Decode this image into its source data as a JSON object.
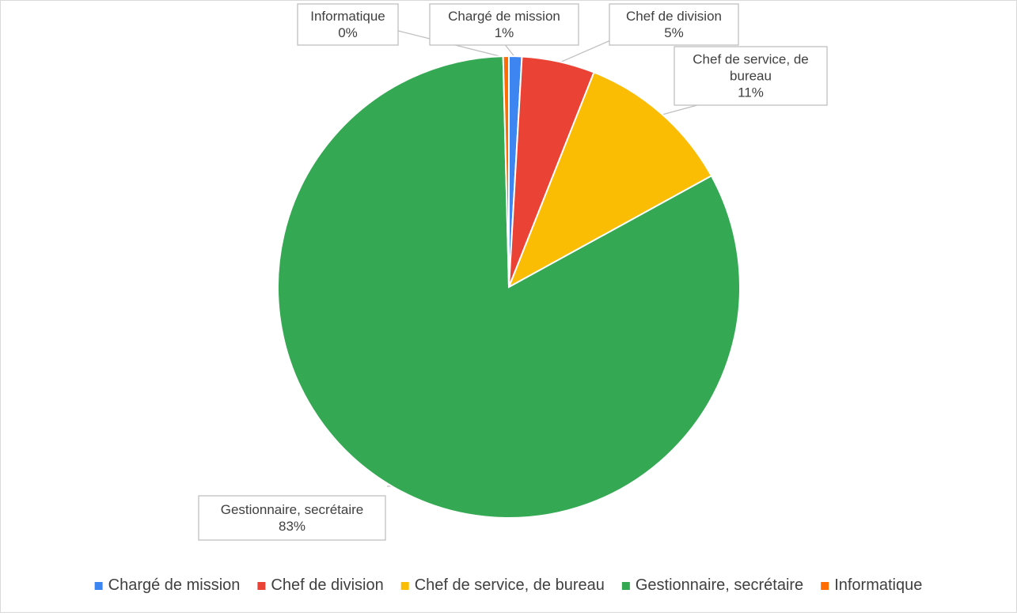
{
  "chart_data": {
    "type": "pie",
    "title": "",
    "categories": [
      "Chargé de mission",
      "Chef de division",
      "Chef de service, de bureau",
      "Gestionnaire, secrétaire",
      "Informatique"
    ],
    "values": [
      0.9,
      5.1,
      11.0,
      82.6,
      0.4
    ],
    "data_labels": [
      {
        "name": "Chargé de mission",
        "pct": "1%"
      },
      {
        "name": "Chef de division",
        "pct": "5%"
      },
      {
        "name": "Chef de service, de bureau",
        "pct": "11%"
      },
      {
        "name": "Gestionnaire, secrétaire",
        "pct": "83%"
      },
      {
        "name": "Informatique",
        "pct": "0%"
      }
    ],
    "colors": [
      "#3d85f0",
      "#ea4335",
      "#fbbc04",
      "#34a853",
      "#ff6d01"
    ],
    "legend": {
      "placement": "bottom",
      "entries": [
        "Chargé de mission",
        "Chef de division",
        "Chef de service, de bureau",
        "Gestionnaire, secrétaire",
        "Informatique"
      ]
    }
  }
}
